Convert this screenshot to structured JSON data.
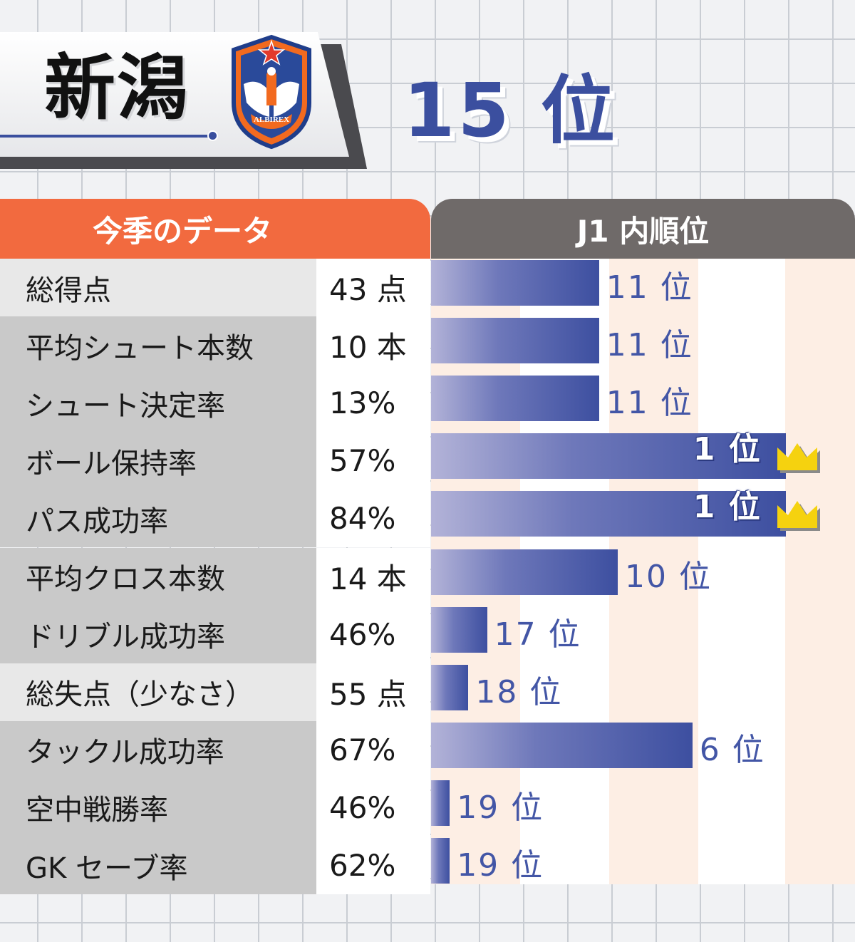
{
  "header": {
    "team": "新潟",
    "crest_text": "ALBIREX",
    "overall_rank": "15 位"
  },
  "table": {
    "left_header": "今季のデータ",
    "right_header": "J1 内順位"
  },
  "colors": {
    "accent_orange": "#f26a3f",
    "header_gray": "#6f6a69",
    "bar_blue": "#3d4fa0",
    "rank_blue": "#4356a6",
    "crown_yellow": "#f5d20f"
  },
  "chart_data": {
    "type": "bar",
    "orientation": "horizontal",
    "note_scale": "bar length = 20 - rank (1位 longest)",
    "categories": [
      "総得点",
      "平均シュート本数",
      "シュート決定率",
      "ボール保持率",
      "パス成功率",
      "平均クロス本数",
      "ドリブル成功率",
      "総失点（少なさ）",
      "タックル成功率",
      "空中戦勝率",
      "GK セーブ率"
    ],
    "values": [
      "43 点",
      "10 本",
      "13%",
      "57%",
      "84%",
      "14 本",
      "46%",
      "55 点",
      "67%",
      "46%",
      "62%"
    ],
    "ranks": [
      11,
      11,
      11,
      1,
      1,
      10,
      17,
      18,
      6,
      19,
      19
    ],
    "rank_labels": [
      "11 位",
      "11 位",
      "11 位",
      "1 位",
      "1 位",
      "10 位",
      "17 位",
      "18 位",
      "6 位",
      "19 位",
      "19 位"
    ],
    "row_shading": [
      "light",
      "dark",
      "dark",
      "dark",
      "dark",
      "dark",
      "dark",
      "light",
      "dark",
      "dark",
      "dark"
    ]
  }
}
